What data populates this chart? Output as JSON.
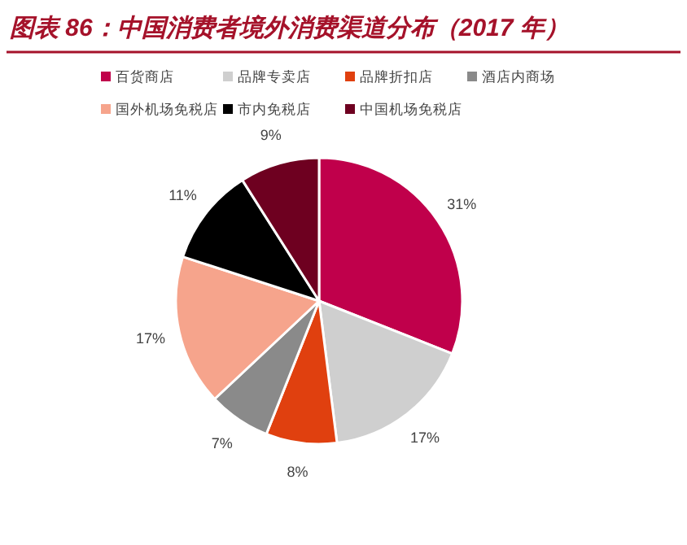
{
  "chart_data": {
    "type": "pie",
    "title": "图表 86：中国消费者境外消费渠道分布（2017 年）",
    "categories": [
      "百货商店",
      "品牌专卖店",
      "品牌折扣店",
      "酒店内商场",
      "国外机场免税店",
      "市内免税店",
      "中国机场免税店"
    ],
    "values": [
      31,
      17,
      8,
      7,
      17,
      11,
      9
    ],
    "colors": [
      "#c0004b",
      "#cfcfcf",
      "#e0400f",
      "#8a8a8a",
      "#f6a48c",
      "#000000",
      "#6e0020"
    ],
    "value_labels": [
      "31%",
      "17%",
      "8%",
      "7%",
      "17%",
      "11%",
      "9%"
    ],
    "legend": "top"
  }
}
